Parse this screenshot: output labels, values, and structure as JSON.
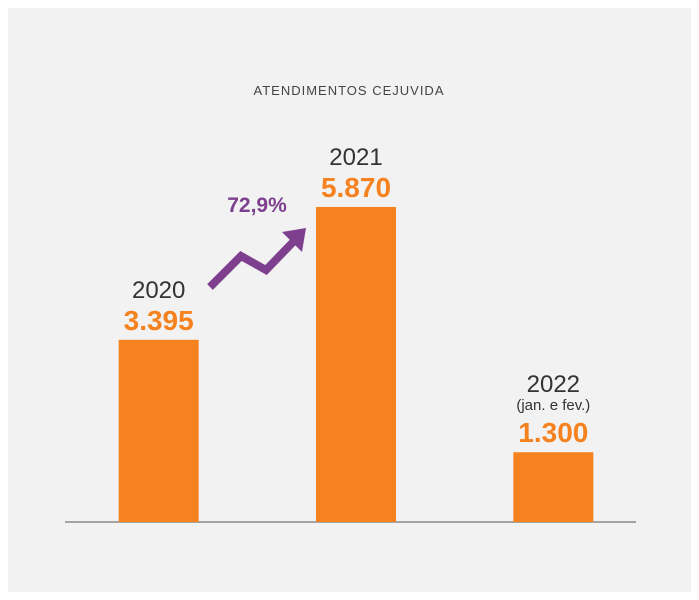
{
  "chart_data": {
    "type": "bar",
    "title": "ATENDIMENTOS CEJUVIDA",
    "categories": [
      "2020",
      "2021",
      "2022"
    ],
    "category_notes": {
      "2": "(jan. e fev.)"
    },
    "values": [
      3395,
      5870,
      1300
    ],
    "value_labels": [
      "3.395",
      "5.870",
      "1.300"
    ],
    "color": "#f5821f",
    "ylim": [
      0,
      6000
    ],
    "growth": {
      "value": 72.9,
      "label": "72,9%",
      "color": "#7d3f8e"
    }
  }
}
